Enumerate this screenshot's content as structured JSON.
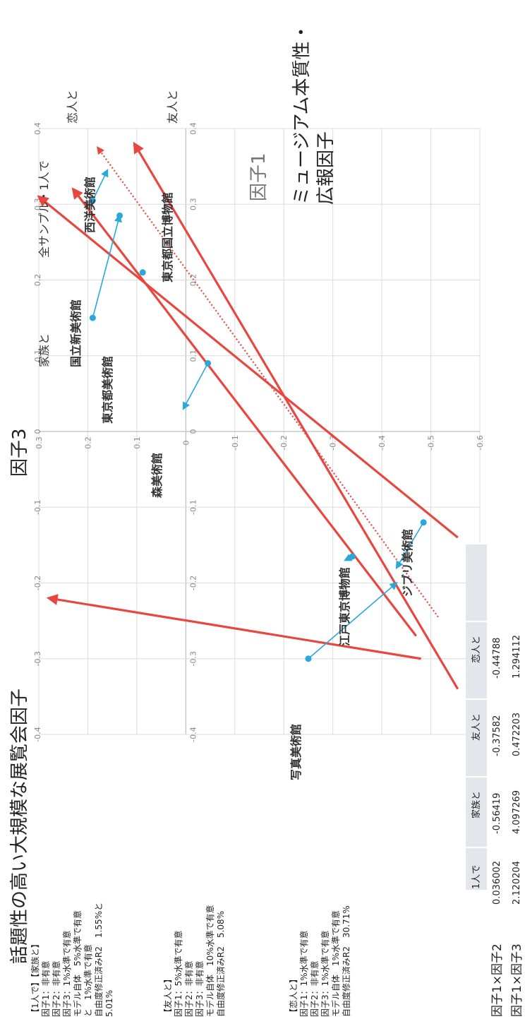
{
  "chart_data": {
    "type": "biplot",
    "title": "話題性の高い大規模な展覧会因子",
    "axis_a_title": "因子3",
    "axis_b_title": "因子1",
    "axis_b_subtitle": [
      "ミュージアム本質性・",
      "広報因子"
    ],
    "factor1_ticks": [
      "-0.6",
      "-0.5",
      "-0.4",
      "-0.3",
      "-0.2",
      "-0.1",
      "0",
      "0.1",
      "0.2",
      "0.3"
    ],
    "factor3_ticks": [
      "0.4",
      "0.3",
      "0.2",
      "0.1",
      "0",
      "-0.1",
      "-0.2",
      "-0.3",
      "-0.4"
    ],
    "factor1_range": [
      -0.6,
      0.3
    ],
    "factor3_range": [
      -0.4,
      0.4
    ],
    "museums": [
      {
        "name": "西洋美術館",
        "f1": 0.19,
        "f3": 0.305
      },
      {
        "name": "東京都国立博物館",
        "f1": 0.19,
        "f3": 0.15
      },
      {
        "name": "国立新美術館",
        "f1": 0.135,
        "f3": 0.285
      },
      {
        "name": "東京都美術館",
        "f1": 0.088,
        "f3": 0.21
      },
      {
        "name": "森美術館",
        "f1": -0.045,
        "f3": 0.09
      },
      {
        "name": "ジブリ美術館",
        "f1": -0.485,
        "f3": -0.12
      },
      {
        "name": "江戸東京博物館",
        "f1": -0.34,
        "f3": -0.165
      },
      {
        "name": "写真美術館",
        "f1": -0.25,
        "f3": -0.3
      }
    ],
    "vectors": [
      {
        "name": "恋人と",
        "f1": 0.3,
        "f3": 0.31,
        "tail_f1": -0.555,
        "tail_f3": -0.14
      },
      {
        "name": "友人と",
        "f1": 0.28,
        "f3": -0.22,
        "tail_f1": -0.48,
        "tail_f3": -0.3
      },
      {
        "name": "家族と",
        "f1": 0.105,
        "f3": 0.38,
        "tail_f1": -0.555,
        "tail_f3": -0.34
      },
      {
        "name": "",
        "f1": 0.23,
        "f3": 0.32,
        "tail_f1": -0.47,
        "tail_f3": -0.27
      }
    ],
    "reference_line": {
      "name": "全サンプル・1人で",
      "f1_a": 0.18,
      "f3_a": 0.375,
      "f1_b": -0.515,
      "f3_b": -0.245
    },
    "projections": [
      {
        "museum": "西洋美術館",
        "to_f1": 0.16,
        "to_f3": 0.345
      },
      {
        "museum": "東京都国立博物館",
        "to_f1": 0.135,
        "to_f3": 0.285
      },
      {
        "museum": "森美術館",
        "to_f1": 0.005,
        "to_f3": 0.03
      },
      {
        "museum": "ジブリ美術館",
        "to_f1": -0.43,
        "to_f3": -0.18
      },
      {
        "museum": "江戸東京博物館",
        "to_f1": -0.325,
        "to_f3": -0.17
      },
      {
        "museum": "写真美術館",
        "to_f1": -0.43,
        "to_f3": -0.2
      }
    ],
    "table": {
      "columns": [
        "1人で",
        "家族と",
        "友人と",
        "恋人と"
      ],
      "rows": [
        {
          "label": "因子1×因子2",
          "values": [
            "0.036002",
            "-0.56419",
            "-0.37582",
            "-0.44788"
          ]
        },
        {
          "label": "因子1×因子3",
          "values": [
            "2.120204",
            "4.097269",
            "0.472203",
            "1.294112"
          ]
        }
      ]
    },
    "notes": [
      [
        "【1人で】【家族と】",
        "因子1：非有意",
        "因子2：非有意",
        "因子3：1%水準で有意",
        "モデル自体　5%水準で有意",
        "と　1%水準で有意",
        "自由度修正済みR2　1.55%と",
        "5.01%"
      ],
      [
        "【友人と】",
        "因子1：5%水準で有意",
        "因子2：非有意",
        "因子3：非有意",
        "モデル自体　10%水準で有意",
        "自由度修正済みR2　5.08%"
      ],
      [
        "【恋人と】",
        "因子1：1%水準で有意",
        "因子2：非有意",
        "因子3：1%水準で有意",
        "モデル自体　1%水準で有意",
        "自由度修正済みR2　30.71%"
      ]
    ],
    "colors": {
      "vector": "#e8473f",
      "museum": "#2aa7dd",
      "grid": "#dcdcdc",
      "table_header": "#e3e7ec"
    }
  }
}
